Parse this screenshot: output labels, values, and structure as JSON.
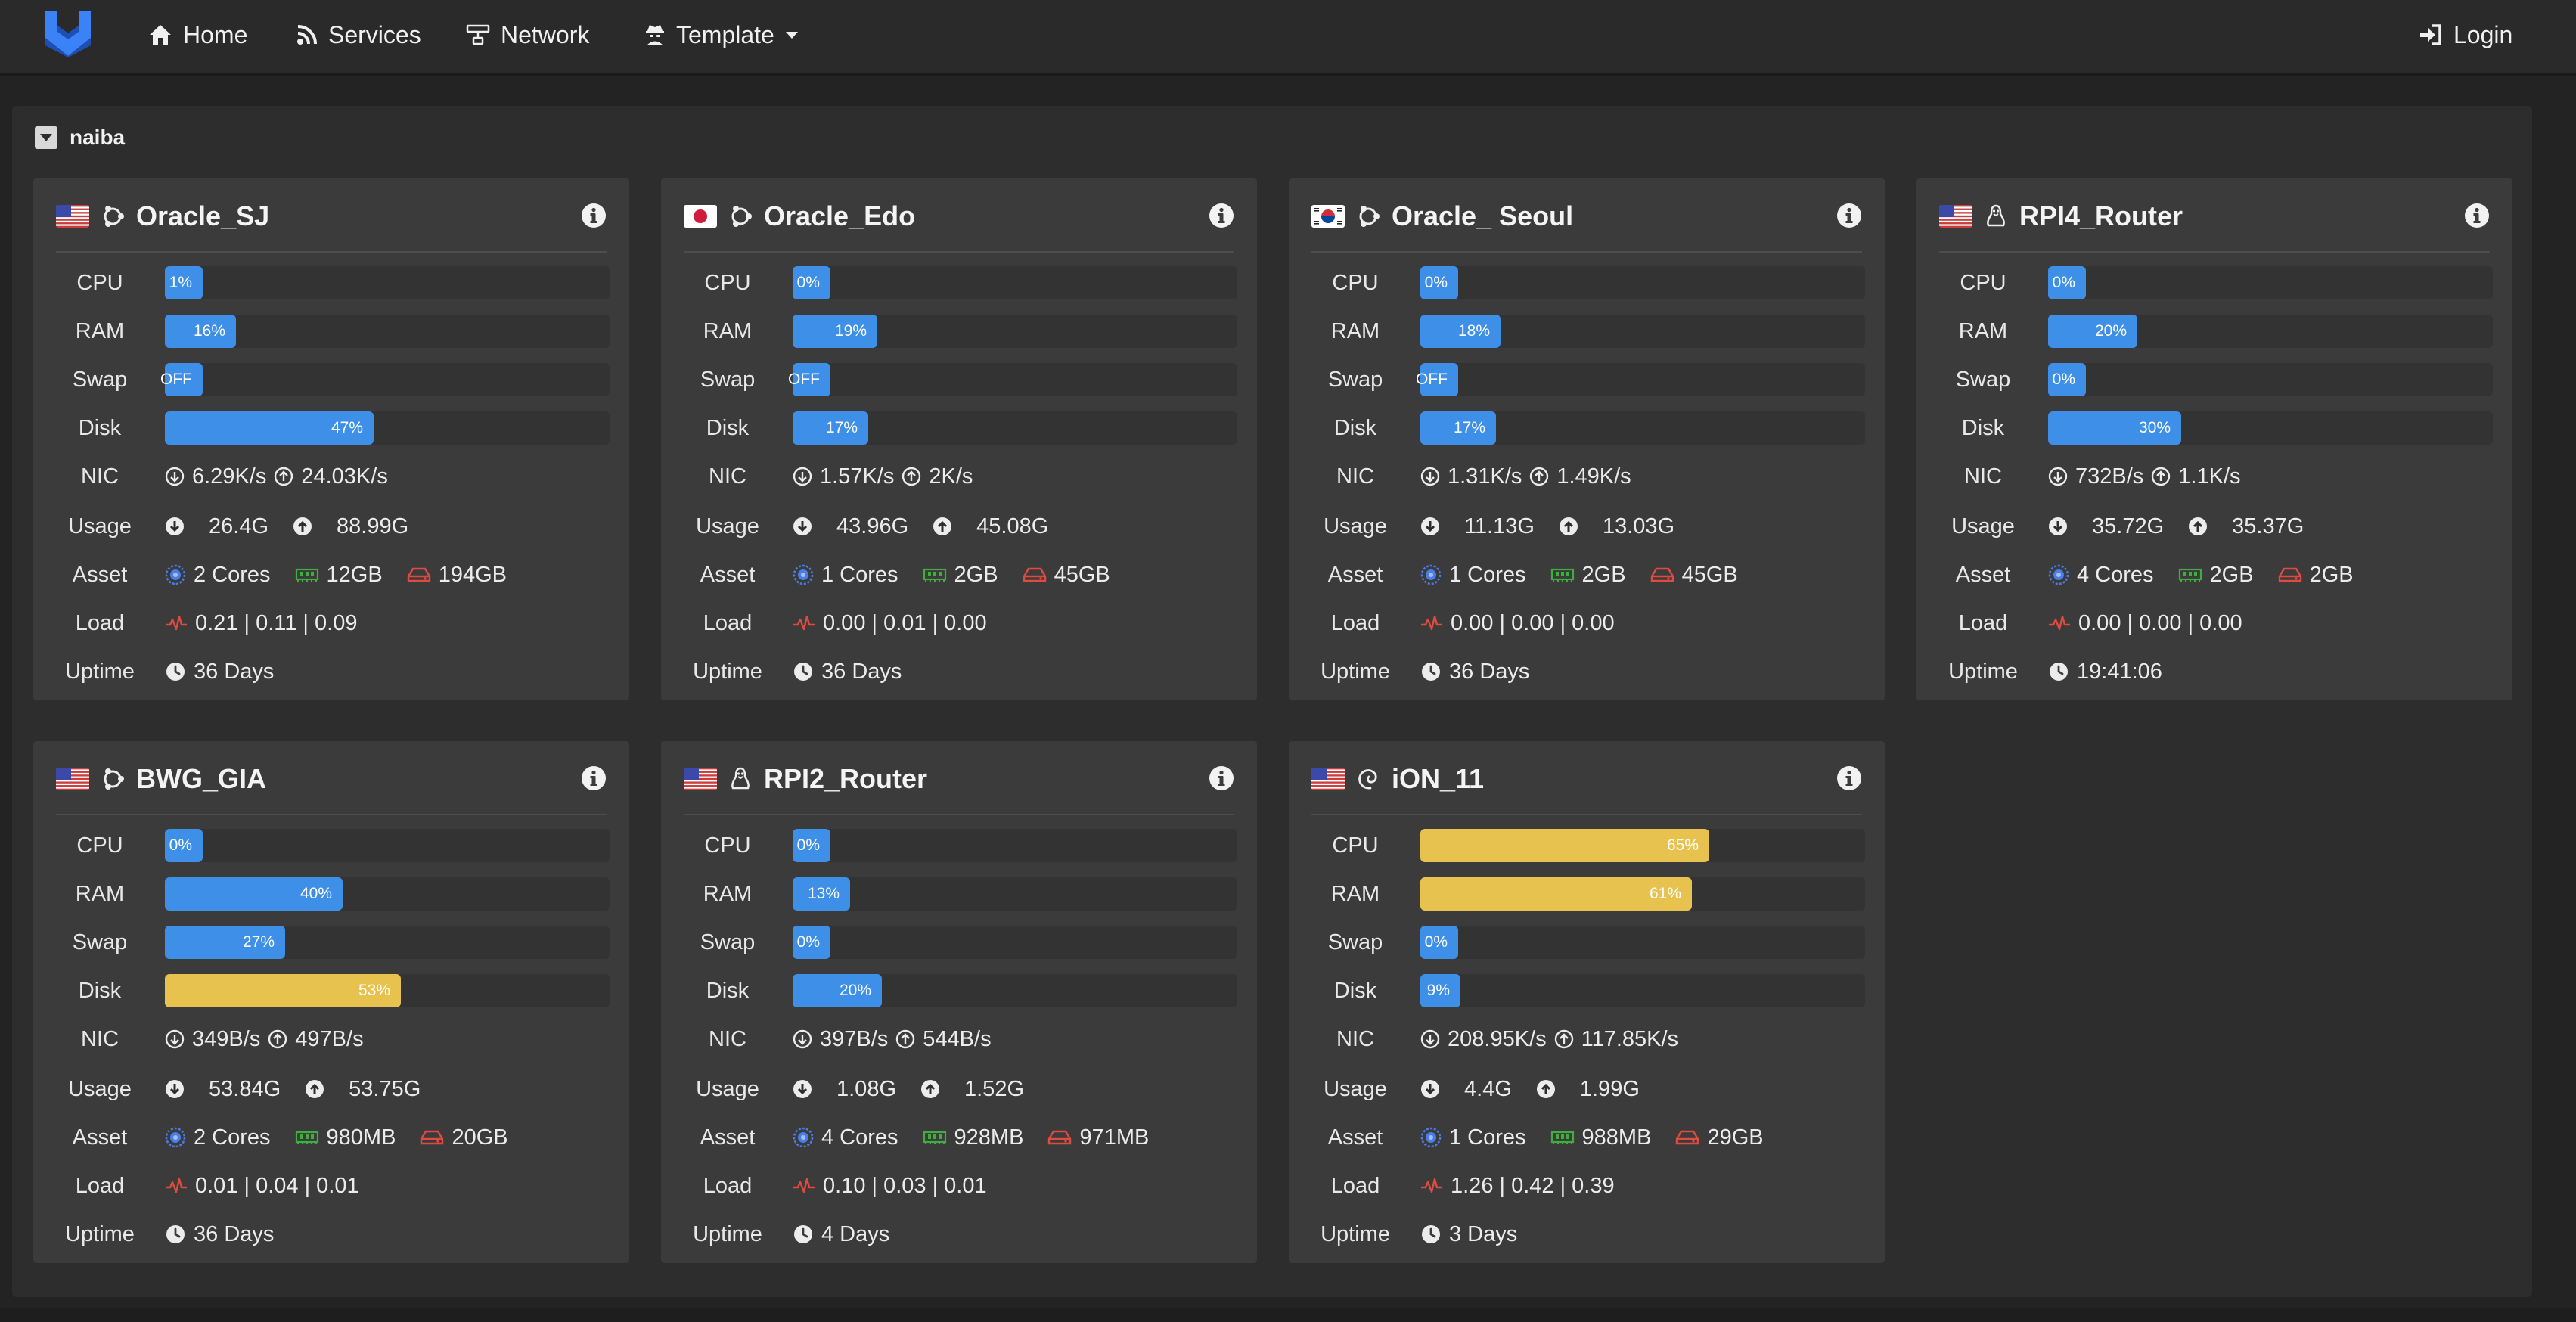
{
  "nav": {
    "home": "Home",
    "services": "Services",
    "network": "Network",
    "template": "Template",
    "login": "Login"
  },
  "group": {
    "name": "naiba"
  },
  "colors": {
    "bar_blue": "#3d8fe8",
    "bar_yellow": "#e8c24e",
    "cpu_icon": "#4a7de8",
    "ram_icon": "#3fae3f",
    "disk_icon": "#e04b3f",
    "load_icon": "#e04b3f"
  },
  "labels": {
    "cpu": "CPU",
    "ram": "RAM",
    "swap": "Swap",
    "disk": "Disk",
    "nic": "NIC",
    "usage": "Usage",
    "asset": "Asset",
    "load": "Load",
    "uptime": "Uptime"
  },
  "servers": [
    {
      "name": "Oracle_SJ",
      "flag": "us",
      "os": "ubuntu",
      "cpu": {
        "value": 1,
        "label": "1%",
        "color": "blue"
      },
      "ram": {
        "value": 16,
        "label": "16%",
        "color": "blue"
      },
      "swap": {
        "value": 0,
        "label": "OFF",
        "color": "blue"
      },
      "disk": {
        "value": 47,
        "label": "47%",
        "color": "blue"
      },
      "nic_down": "6.29K/s",
      "nic_up": "24.03K/s",
      "usage_down": "26.4G",
      "usage_up": "88.99G",
      "cores": "2 Cores",
      "mem": "12GB",
      "storage": "194GB",
      "load": "0.21 | 0.11 | 0.09",
      "uptime": "36 Days"
    },
    {
      "name": "Oracle_Edo",
      "flag": "jp",
      "os": "ubuntu",
      "cpu": {
        "value": 0,
        "label": "0%",
        "color": "blue"
      },
      "ram": {
        "value": 19,
        "label": "19%",
        "color": "blue"
      },
      "swap": {
        "value": 0,
        "label": "OFF",
        "color": "blue"
      },
      "disk": {
        "value": 17,
        "label": "17%",
        "color": "blue"
      },
      "nic_down": "1.57K/s",
      "nic_up": "2K/s",
      "usage_down": "43.96G",
      "usage_up": "45.08G",
      "cores": "1 Cores",
      "mem": "2GB",
      "storage": "45GB",
      "load": "0.00 | 0.01 | 0.00",
      "uptime": "36 Days"
    },
    {
      "name": "Oracle_ Seoul",
      "flag": "kr",
      "os": "ubuntu",
      "cpu": {
        "value": 0,
        "label": "0%",
        "color": "blue"
      },
      "ram": {
        "value": 18,
        "label": "18%",
        "color": "blue"
      },
      "swap": {
        "value": 0,
        "label": "OFF",
        "color": "blue"
      },
      "disk": {
        "value": 17,
        "label": "17%",
        "color": "blue"
      },
      "nic_down": "1.31K/s",
      "nic_up": "1.49K/s",
      "usage_down": "11.13G",
      "usage_up": "13.03G",
      "cores": "1 Cores",
      "mem": "2GB",
      "storage": "45GB",
      "load": "0.00 | 0.00 | 0.00",
      "uptime": "36 Days"
    },
    {
      "name": "RPI4_Router",
      "flag": "us",
      "os": "linux",
      "cpu": {
        "value": 0,
        "label": "0%",
        "color": "blue"
      },
      "ram": {
        "value": 20,
        "label": "20%",
        "color": "blue"
      },
      "swap": {
        "value": 0,
        "label": "0%",
        "color": "blue"
      },
      "disk": {
        "value": 30,
        "label": "30%",
        "color": "blue"
      },
      "nic_down": "732B/s",
      "nic_up": "1.1K/s",
      "usage_down": "35.72G",
      "usage_up": "35.37G",
      "cores": "4 Cores",
      "mem": "2GB",
      "storage": "2GB",
      "load": "0.00 | 0.00 | 0.00",
      "uptime": "19:41:06"
    },
    {
      "name": "BWG_GIA",
      "flag": "us",
      "os": "ubuntu",
      "cpu": {
        "value": 0,
        "label": "0%",
        "color": "blue"
      },
      "ram": {
        "value": 40,
        "label": "40%",
        "color": "blue"
      },
      "swap": {
        "value": 27,
        "label": "27%",
        "color": "blue"
      },
      "disk": {
        "value": 53,
        "label": "53%",
        "color": "yellow"
      },
      "nic_down": "349B/s",
      "nic_up": "497B/s",
      "usage_down": "53.84G",
      "usage_up": "53.75G",
      "cores": "2 Cores",
      "mem": "980MB",
      "storage": "20GB",
      "load": "0.01 | 0.04 | 0.01",
      "uptime": "36 Days"
    },
    {
      "name": "RPI2_Router",
      "flag": "us",
      "os": "linux",
      "cpu": {
        "value": 0,
        "label": "0%",
        "color": "blue"
      },
      "ram": {
        "value": 13,
        "label": "13%",
        "color": "blue"
      },
      "swap": {
        "value": 0,
        "label": "0%",
        "color": "blue"
      },
      "disk": {
        "value": 20,
        "label": "20%",
        "color": "blue"
      },
      "nic_down": "397B/s",
      "nic_up": "544B/s",
      "usage_down": "1.08G",
      "usage_up": "1.52G",
      "cores": "4 Cores",
      "mem": "928MB",
      "storage": "971MB",
      "load": "0.10 | 0.03 | 0.01",
      "uptime": "4 Days"
    },
    {
      "name": "iON_11",
      "flag": "us",
      "os": "debian",
      "cpu": {
        "value": 65,
        "label": "65%",
        "color": "yellow"
      },
      "ram": {
        "value": 61,
        "label": "61%",
        "color": "yellow"
      },
      "swap": {
        "value": 0,
        "label": "0%",
        "color": "blue"
      },
      "disk": {
        "value": 9,
        "label": "9%",
        "color": "blue"
      },
      "nic_down": "208.95K/s",
      "nic_up": "117.85K/s",
      "usage_down": "4.4G",
      "usage_up": "1.99G",
      "cores": "1 Cores",
      "mem": "988MB",
      "storage": "29GB",
      "load": "1.26 | 0.42 | 0.39",
      "uptime": "3 Days"
    }
  ]
}
